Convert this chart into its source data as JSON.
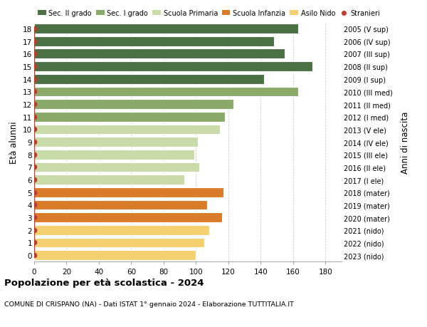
{
  "ages": [
    18,
    17,
    16,
    15,
    14,
    13,
    12,
    11,
    10,
    9,
    8,
    7,
    6,
    5,
    4,
    3,
    2,
    1,
    0
  ],
  "values": [
    163,
    148,
    155,
    172,
    142,
    163,
    123,
    118,
    115,
    101,
    99,
    102,
    93,
    117,
    107,
    116,
    108,
    105,
    100
  ],
  "right_labels": [
    "2005 (V sup)",
    "2006 (IV sup)",
    "2007 (III sup)",
    "2008 (II sup)",
    "2009 (I sup)",
    "2010 (III med)",
    "2011 (II med)",
    "2012 (I med)",
    "2013 (V ele)",
    "2014 (IV ele)",
    "2015 (III ele)",
    "2016 (II ele)",
    "2017 (I ele)",
    "2018 (mater)",
    "2019 (mater)",
    "2020 (mater)",
    "2021 (nido)",
    "2022 (nido)",
    "2023 (nido)"
  ],
  "bar_colors_by_age": {
    "18": "#4a7043",
    "17": "#4a7043",
    "16": "#4a7043",
    "15": "#4a7043",
    "14": "#4a7043",
    "13": "#8aaa6a",
    "12": "#8aaa6a",
    "11": "#8aaa6a",
    "10": "#c8dba8",
    "9": "#c8dba8",
    "8": "#c8dba8",
    "7": "#c8dba8",
    "6": "#c8dba8",
    "5": "#d97b2a",
    "4": "#d97b2a",
    "3": "#d97b2a",
    "2": "#f5d070",
    "1": "#f5d070",
    "0": "#f5d070"
  },
  "stranieri_color": "#c0392b",
  "title": "Popolazione per età scolastica - 2024",
  "subtitle": "COMUNE DI CRISPANO (NA) - Dati ISTAT 1° gennaio 2024 - Elaborazione TUTTITALIA.IT",
  "ylabel": "Età alunni",
  "right_ylabel": "Anni di nascita",
  "xlim": [
    0,
    190
  ],
  "xticks": [
    0,
    20,
    40,
    60,
    80,
    100,
    120,
    140,
    160,
    180
  ],
  "legend_items": [
    {
      "label": "Sec. II grado",
      "color": "#4a7043"
    },
    {
      "label": "Sec. I grado",
      "color": "#8aaa6a"
    },
    {
      "label": "Scuola Primaria",
      "color": "#c8dba8"
    },
    {
      "label": "Scuola Infanzia",
      "color": "#d97b2a"
    },
    {
      "label": "Asilo Nido",
      "color": "#f5d070"
    },
    {
      "label": "Stranieri",
      "color": "#c0392b"
    }
  ],
  "bg_color": "#ffffff",
  "grid_color": "#cccccc"
}
